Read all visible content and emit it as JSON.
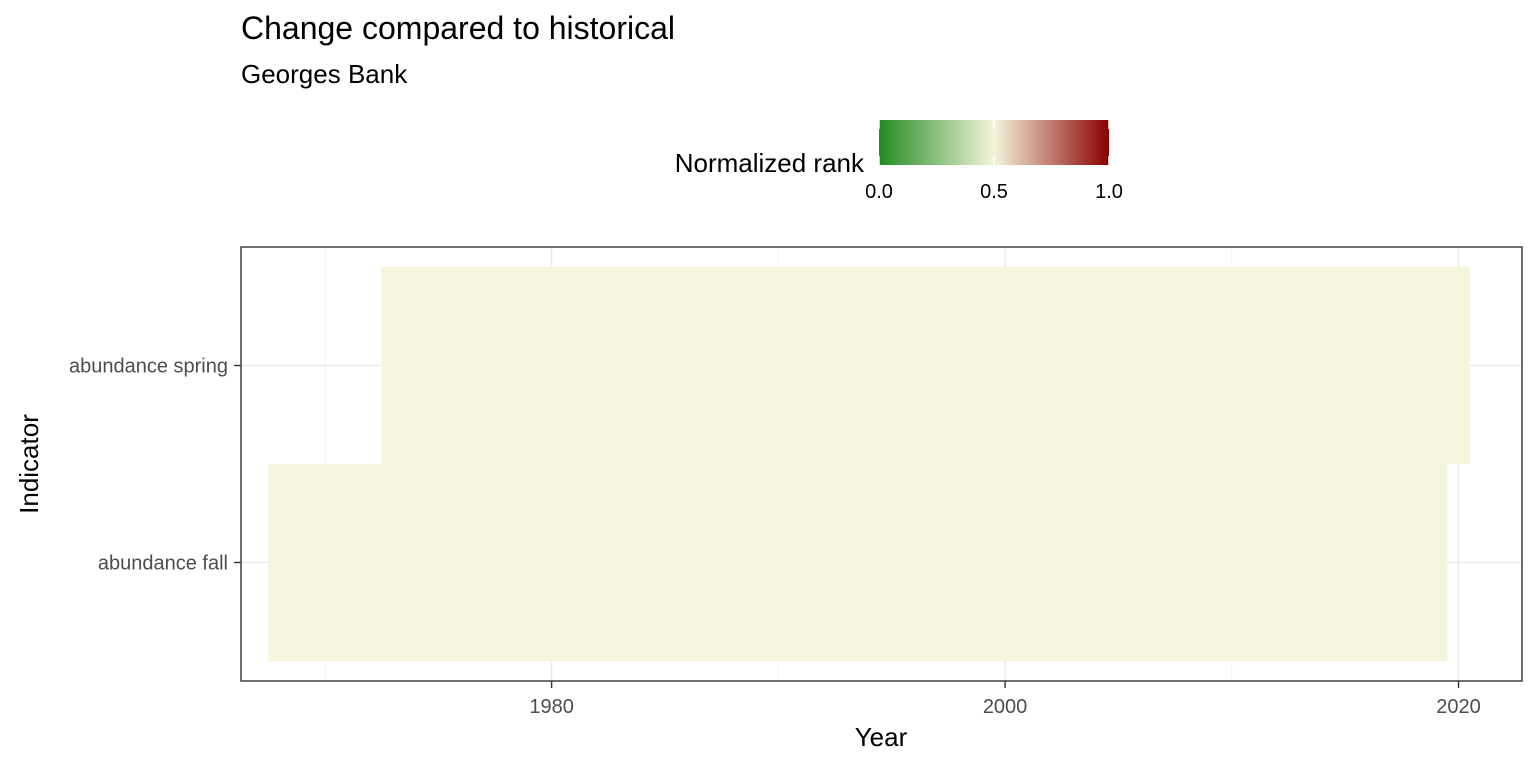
{
  "chart_data": {
    "type": "heatmap",
    "title": "Change compared to historical",
    "subtitle": "Georges Bank",
    "xlabel": "Year",
    "ylabel": "Indicator",
    "xlim": [
      1966.3,
      2022.8
    ],
    "x_ticks": [
      1980,
      2000,
      2020
    ],
    "x_minor_ticks": [
      1970,
      1990,
      2010
    ],
    "y_categories": [
      "abundance fall",
      "abundance spring"
    ],
    "legend": {
      "title": "Normalized rank",
      "placement": "top",
      "ticks": [
        0.0,
        0.5,
        1.0
      ],
      "tick_labels": [
        "0.0",
        "0.5",
        "1.0"
      ],
      "colors": {
        "low": "#228B22",
        "mid": "#F5F5DC",
        "high": "#8B0000"
      }
    },
    "grid": true,
    "series": [
      {
        "category": "abundance spring",
        "x_start": 1973,
        "x_end": 2020,
        "value": 0.5
      },
      {
        "category": "abundance fall",
        "x_start": 1968,
        "x_end": 2019,
        "value": 0.5
      }
    ]
  }
}
